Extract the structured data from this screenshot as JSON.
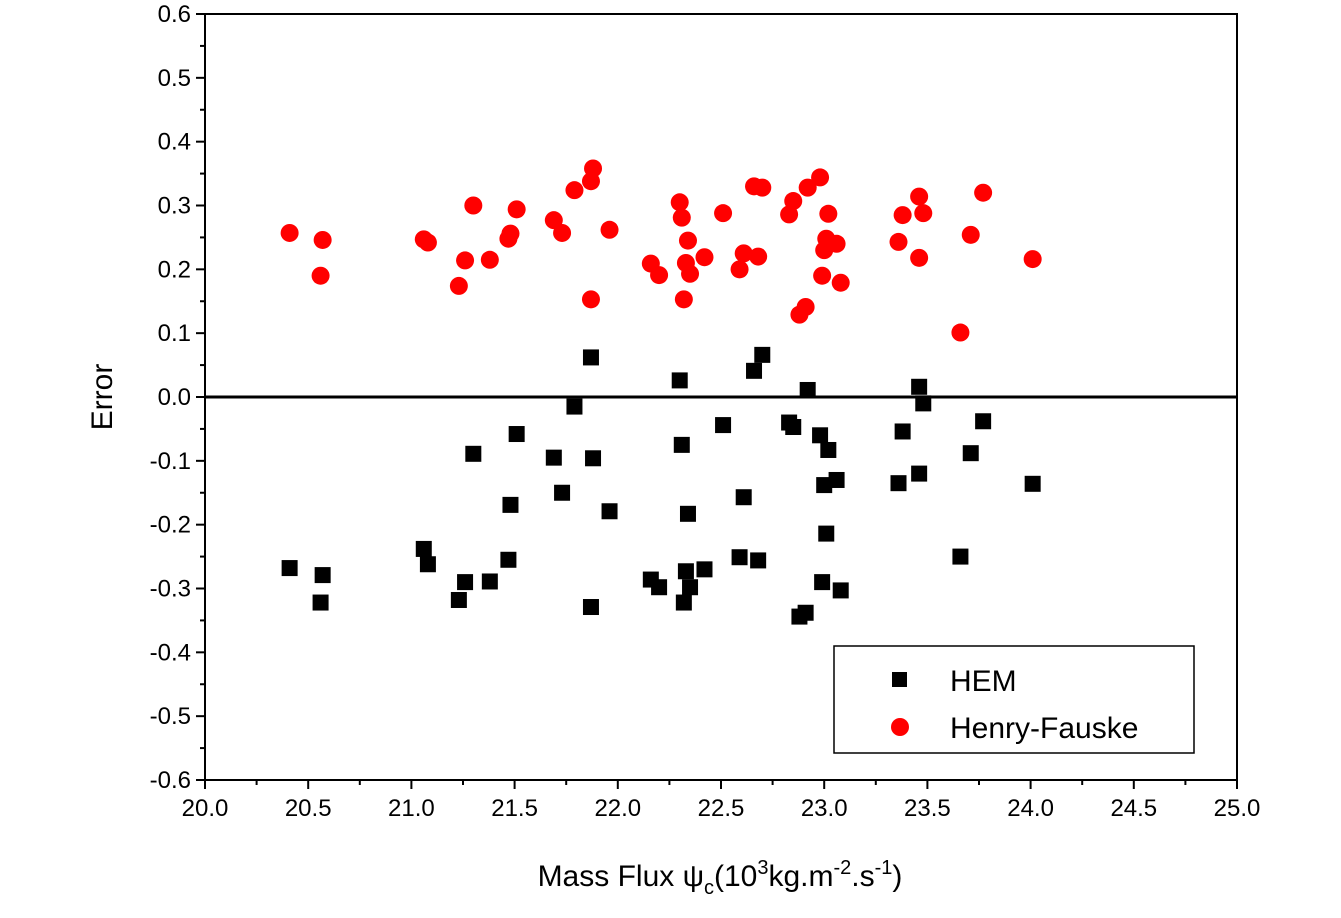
{
  "chart_data": {
    "type": "scatter",
    "title": "",
    "xlabel": {
      "main": "Mass Flux ",
      "symbol": "ψ",
      "symbol_sub": "c",
      "paren_open": "(10",
      "sup1": "3",
      "mid": "kg.m",
      "sup2": "-2",
      "mid2": ".s",
      "sup3": "-1",
      "paren_close": ")"
    },
    "ylabel": "Error",
    "xlim": [
      20.0,
      25.0
    ],
    "ylim": [
      -0.6,
      0.6
    ],
    "x_ticks": [
      "20.0",
      "20.5",
      "21.0",
      "21.5",
      "22.0",
      "22.5",
      "23.0",
      "23.5",
      "24.0",
      "24.5",
      "25.0"
    ],
    "y_ticks": [
      "-0.6",
      "-0.5",
      "-0.4",
      "-0.3",
      "-0.2",
      "-0.1",
      "0.0",
      "0.1",
      "0.2",
      "0.3",
      "0.4",
      "0.5",
      "0.6"
    ],
    "reference_line_y": 0.0,
    "legend_position": "bottom-right",
    "grid": false,
    "series": [
      {
        "name": "HEM",
        "marker": "square",
        "color": "#000000",
        "points": [
          [
            20.41,
            -0.268
          ],
          [
            20.56,
            -0.322
          ],
          [
            20.57,
            -0.279
          ],
          [
            21.06,
            -0.238
          ],
          [
            21.08,
            -0.262
          ],
          [
            21.23,
            -0.318
          ],
          [
            21.26,
            -0.29
          ],
          [
            21.3,
            -0.089
          ],
          [
            21.38,
            -0.289
          ],
          [
            21.47,
            -0.255
          ],
          [
            21.48,
            -0.169
          ],
          [
            21.51,
            -0.058
          ],
          [
            21.69,
            -0.095
          ],
          [
            21.73,
            -0.15
          ],
          [
            21.79,
            -0.015
          ],
          [
            21.87,
            0.062
          ],
          [
            21.87,
            -0.329
          ],
          [
            21.88,
            -0.096
          ],
          [
            21.96,
            -0.179
          ],
          [
            22.16,
            -0.286
          ],
          [
            22.2,
            -0.298
          ],
          [
            22.3,
            0.026
          ],
          [
            22.31,
            -0.075
          ],
          [
            22.32,
            -0.322
          ],
          [
            22.33,
            -0.273
          ],
          [
            22.34,
            -0.183
          ],
          [
            22.35,
            -0.298
          ],
          [
            22.42,
            -0.27
          ],
          [
            22.51,
            -0.044
          ],
          [
            22.59,
            -0.251
          ],
          [
            22.61,
            -0.157
          ],
          [
            22.66,
            0.041
          ],
          [
            22.68,
            -0.256
          ],
          [
            22.7,
            0.066
          ],
          [
            22.83,
            -0.04
          ],
          [
            22.85,
            -0.047
          ],
          [
            22.88,
            -0.344
          ],
          [
            22.91,
            -0.338
          ],
          [
            22.92,
            0.011
          ],
          [
            22.98,
            -0.06
          ],
          [
            22.99,
            -0.29
          ],
          [
            23.0,
            -0.138
          ],
          [
            23.01,
            -0.214
          ],
          [
            23.02,
            -0.083
          ],
          [
            23.06,
            -0.13
          ],
          [
            23.08,
            -0.303
          ],
          [
            23.36,
            -0.135
          ],
          [
            23.38,
            -0.054
          ],
          [
            23.46,
            0.016
          ],
          [
            23.46,
            -0.12
          ],
          [
            23.48,
            -0.01
          ],
          [
            23.66,
            -0.25
          ],
          [
            23.71,
            -0.088
          ],
          [
            23.77,
            -0.038
          ],
          [
            24.01,
            -0.136
          ]
        ]
      },
      {
        "name": "Henry-Fauske",
        "marker": "circle",
        "color": "#ff0000",
        "points": [
          [
            20.41,
            0.257
          ],
          [
            20.56,
            0.19
          ],
          [
            20.57,
            0.246
          ],
          [
            21.06,
            0.247
          ],
          [
            21.08,
            0.242
          ],
          [
            21.23,
            0.174
          ],
          [
            21.26,
            0.214
          ],
          [
            21.3,
            0.3
          ],
          [
            21.38,
            0.215
          ],
          [
            21.47,
            0.248
          ],
          [
            21.48,
            0.256
          ],
          [
            21.51,
            0.294
          ],
          [
            21.69,
            0.277
          ],
          [
            21.73,
            0.257
          ],
          [
            21.79,
            0.324
          ],
          [
            21.87,
            0.338
          ],
          [
            21.87,
            0.153
          ],
          [
            21.88,
            0.358
          ],
          [
            21.96,
            0.262
          ],
          [
            22.16,
            0.209
          ],
          [
            22.2,
            0.191
          ],
          [
            22.3,
            0.305
          ],
          [
            22.31,
            0.281
          ],
          [
            22.32,
            0.153
          ],
          [
            22.33,
            0.21
          ],
          [
            22.34,
            0.245
          ],
          [
            22.35,
            0.193
          ],
          [
            22.42,
            0.219
          ],
          [
            22.51,
            0.288
          ],
          [
            22.59,
            0.2
          ],
          [
            22.61,
            0.225
          ],
          [
            22.66,
            0.33
          ],
          [
            22.68,
            0.22
          ],
          [
            22.7,
            0.328
          ],
          [
            22.83,
            0.286
          ],
          [
            22.85,
            0.307
          ],
          [
            22.88,
            0.129
          ],
          [
            22.91,
            0.141
          ],
          [
            22.92,
            0.328
          ],
          [
            22.98,
            0.344
          ],
          [
            22.99,
            0.19
          ],
          [
            23.0,
            0.23
          ],
          [
            23.01,
            0.248
          ],
          [
            23.02,
            0.287
          ],
          [
            23.06,
            0.24
          ],
          [
            23.08,
            0.179
          ],
          [
            23.36,
            0.243
          ],
          [
            23.38,
            0.285
          ],
          [
            23.46,
            0.314
          ],
          [
            23.46,
            0.218
          ],
          [
            23.48,
            0.288
          ],
          [
            23.66,
            0.101
          ],
          [
            23.71,
            0.254
          ],
          [
            23.77,
            0.32
          ],
          [
            24.01,
            0.216
          ]
        ]
      }
    ]
  }
}
